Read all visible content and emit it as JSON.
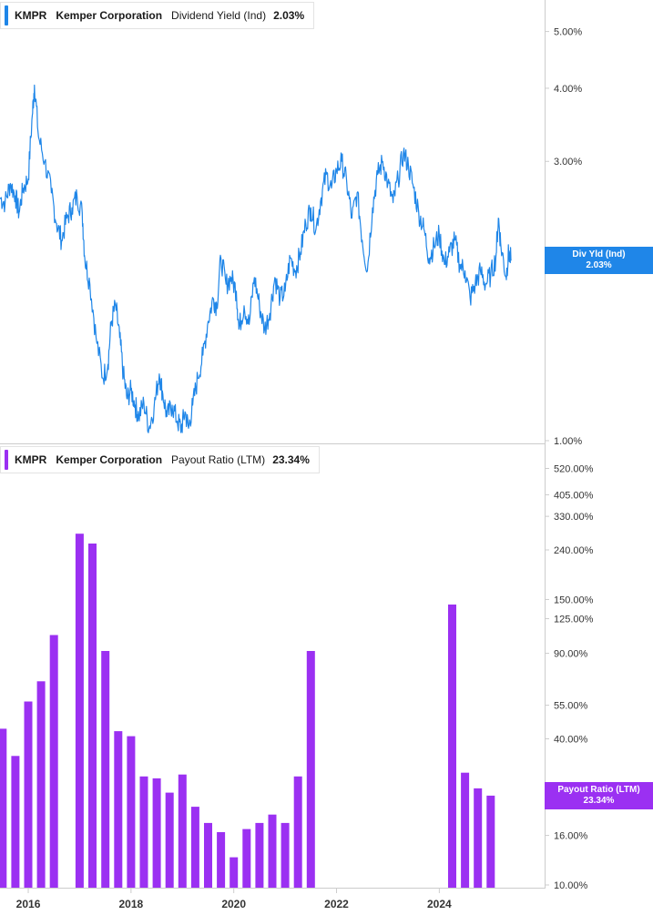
{
  "colors": {
    "yield": "#1f86e8",
    "payout": "#9b30f2",
    "axis": "#cccccc",
    "text": "#333333"
  },
  "top_legend": {
    "ticker": "KMPR",
    "company": "Kemper Corporation",
    "metric": "Dividend Yield (Ind)",
    "value": "2.03%"
  },
  "bottom_legend": {
    "ticker": "KMPR",
    "company": "Kemper Corporation",
    "metric": "Payout Ratio (LTM)",
    "value": "23.34%"
  },
  "top_badge": {
    "label": "Div Yld (Ind)",
    "value": "2.03%"
  },
  "bottom_badge": {
    "label": "Payout Ratio (LTM)",
    "value": "23.34%"
  },
  "x_axis": {
    "ticks": [
      {
        "label": "2016",
        "t": 2016.0
      },
      {
        "label": "2018",
        "t": 2018.0
      },
      {
        "label": "2020",
        "t": 2020.0
      },
      {
        "label": "2022",
        "t": 2022.0
      },
      {
        "label": "2024",
        "t": 2024.0
      }
    ]
  },
  "chart_data": [
    {
      "type": "line",
      "scale": "log",
      "ylim": [
        1.0,
        5.5
      ],
      "y_ticks": [
        {
          "label": "5.00%",
          "v": 5.0
        },
        {
          "label": "4.00%",
          "v": 4.0
        },
        {
          "label": "3.00%",
          "v": 3.0
        },
        {
          "label": "2.00%",
          "v": 2.0
        },
        {
          "label": "1.00%",
          "v": 1.0
        }
      ],
      "series": [
        {
          "name": "Dividend Yield (Ind)",
          "points": [
            [
              2015.45,
              2.6
            ],
            [
              2015.55,
              2.55
            ],
            [
              2015.65,
              2.75
            ],
            [
              2015.75,
              2.62
            ],
            [
              2015.82,
              2.45
            ],
            [
              2015.9,
              2.7
            ],
            [
              2016.0,
              2.8
            ],
            [
              2016.08,
              3.6
            ],
            [
              2016.12,
              4.05
            ],
            [
              2016.2,
              3.3
            ],
            [
              2016.32,
              3.0
            ],
            [
              2016.45,
              2.65
            ],
            [
              2016.55,
              2.35
            ],
            [
              2016.65,
              2.2
            ],
            [
              2016.75,
              2.4
            ],
            [
              2016.85,
              2.5
            ],
            [
              2016.95,
              2.62
            ],
            [
              2017.05,
              2.45
            ],
            [
              2017.1,
              2.05
            ],
            [
              2017.2,
              1.85
            ],
            [
              2017.32,
              1.5
            ],
            [
              2017.45,
              1.28
            ],
            [
              2017.55,
              1.35
            ],
            [
              2017.62,
              1.6
            ],
            [
              2017.7,
              1.7
            ],
            [
              2017.78,
              1.5
            ],
            [
              2017.85,
              1.3
            ],
            [
              2017.92,
              1.18
            ],
            [
              2018.0,
              1.22
            ],
            [
              2018.08,
              1.15
            ],
            [
              2018.15,
              1.1
            ],
            [
              2018.25,
              1.16
            ],
            [
              2018.35,
              1.05
            ],
            [
              2018.45,
              1.14
            ],
            [
              2018.55,
              1.3
            ],
            [
              2018.62,
              1.2
            ],
            [
              2018.7,
              1.1
            ],
            [
              2018.8,
              1.15
            ],
            [
              2018.9,
              1.08
            ],
            [
              2018.98,
              1.05
            ],
            [
              2019.05,
              1.12
            ],
            [
              2019.12,
              1.05
            ],
            [
              2019.2,
              1.15
            ],
            [
              2019.3,
              1.28
            ],
            [
              2019.4,
              1.4
            ],
            [
              2019.5,
              1.6
            ],
            [
              2019.6,
              1.75
            ],
            [
              2019.67,
              1.7
            ],
            [
              2019.75,
              2.05
            ],
            [
              2019.85,
              1.85
            ],
            [
              2019.95,
              1.9
            ],
            [
              2020.05,
              1.8
            ],
            [
              2020.1,
              1.55
            ],
            [
              2020.2,
              1.7
            ],
            [
              2020.3,
              1.58
            ],
            [
              2020.4,
              1.9
            ],
            [
              2020.5,
              1.7
            ],
            [
              2020.6,
              1.55
            ],
            [
              2020.7,
              1.65
            ],
            [
              2020.8,
              1.9
            ],
            [
              2020.9,
              1.75
            ],
            [
              2021.0,
              1.8
            ],
            [
              2021.1,
              2.05
            ],
            [
              2021.2,
              1.95
            ],
            [
              2021.3,
              2.1
            ],
            [
              2021.4,
              2.35
            ],
            [
              2021.5,
              2.5
            ],
            [
              2021.6,
              2.3
            ],
            [
              2021.7,
              2.6
            ],
            [
              2021.8,
              2.85
            ],
            [
              2021.9,
              2.7
            ],
            [
              2022.0,
              2.9
            ],
            [
              2022.1,
              3.0
            ],
            [
              2022.2,
              2.75
            ],
            [
              2022.3,
              2.4
            ],
            [
              2022.4,
              2.65
            ],
            [
              2022.5,
              2.2
            ],
            [
              2022.6,
              1.95
            ],
            [
              2022.7,
              2.5
            ],
            [
              2022.8,
              2.85
            ],
            [
              2022.9,
              3.0
            ],
            [
              2023.0,
              2.75
            ],
            [
              2023.1,
              2.55
            ],
            [
              2023.2,
              2.8
            ],
            [
              2023.3,
              3.1
            ],
            [
              2023.4,
              2.95
            ],
            [
              2023.5,
              2.7
            ],
            [
              2023.6,
              2.45
            ],
            [
              2023.7,
              2.3
            ],
            [
              2023.8,
              2.05
            ],
            [
              2023.9,
              2.15
            ],
            [
              2024.0,
              2.25
            ],
            [
              2024.1,
              2.0
            ],
            [
              2024.2,
              2.1
            ],
            [
              2024.3,
              2.2
            ],
            [
              2024.4,
              2.0
            ],
            [
              2024.5,
              1.95
            ],
            [
              2024.6,
              1.75
            ],
            [
              2024.7,
              1.85
            ],
            [
              2024.8,
              1.95
            ],
            [
              2024.9,
              1.85
            ],
            [
              2025.0,
              1.92
            ],
            [
              2025.1,
              2.05
            ],
            [
              2025.15,
              2.4
            ],
            [
              2025.2,
              2.15
            ],
            [
              2025.3,
              1.9
            ],
            [
              2025.35,
              2.1
            ],
            [
              2025.4,
              2.03
            ]
          ]
        }
      ]
    },
    {
      "type": "bar",
      "scale": "log",
      "ylim": [
        10.0,
        610.0
      ],
      "y_ticks": [
        {
          "label": "520.00%",
          "v": 520
        },
        {
          "label": "405.00%",
          "v": 405
        },
        {
          "label": "330.00%",
          "v": 330
        },
        {
          "label": "240.00%",
          "v": 240
        },
        {
          "label": "150.00%",
          "v": 150
        },
        {
          "label": "125.00%",
          "v": 125
        },
        {
          "label": "90.00%",
          "v": 90
        },
        {
          "label": "55.00%",
          "v": 55
        },
        {
          "label": "40.00%",
          "v": 40
        },
        {
          "label": "16.00%",
          "v": 16
        },
        {
          "label": "10.00%",
          "v": 10
        }
      ],
      "series": [
        {
          "name": "Payout Ratio (LTM)",
          "bars": [
            [
              2015.5,
              44.0
            ],
            [
              2015.75,
              34.0
            ],
            [
              2016.0,
              57.0
            ],
            [
              2016.25,
              69.0
            ],
            [
              2016.5,
              107.0
            ],
            [
              2017.0,
              280.0
            ],
            [
              2017.25,
              255.0
            ],
            [
              2017.5,
              92.0
            ],
            [
              2017.75,
              43.0
            ],
            [
              2018.0,
              41.0
            ],
            [
              2018.25,
              28.0
            ],
            [
              2018.5,
              27.5
            ],
            [
              2018.75,
              24.0
            ],
            [
              2019.0,
              28.5
            ],
            [
              2019.25,
              21.0
            ],
            [
              2019.5,
              18.0
            ],
            [
              2019.75,
              16.5
            ],
            [
              2020.0,
              13.0
            ],
            [
              2020.25,
              17.0
            ],
            [
              2020.5,
              18.0
            ],
            [
              2020.75,
              19.5
            ],
            [
              2021.0,
              18.0
            ],
            [
              2021.25,
              28.0
            ],
            [
              2021.5,
              92.0
            ],
            [
              2024.25,
              143.0
            ],
            [
              2024.5,
              29.0
            ],
            [
              2024.75,
              25.0
            ],
            [
              2025.0,
              23.34
            ]
          ]
        }
      ]
    }
  ]
}
